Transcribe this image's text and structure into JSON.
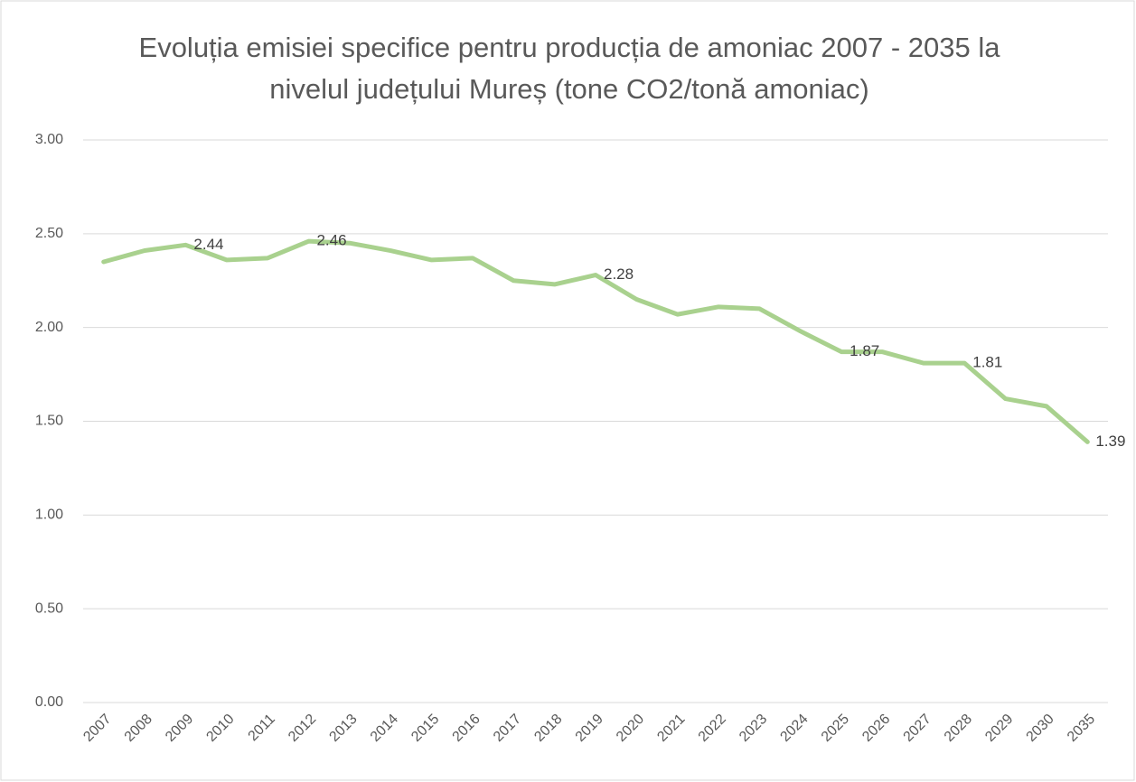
{
  "chart_data": {
    "type": "line",
    "title": "Evoluția emisiei specifice pentru producția de amoniac 2007 - 2035 la nivelul județului Mureș (tone CO2/tonă amoniac)",
    "categories": [
      "2007",
      "2008",
      "2009",
      "2010",
      "2011",
      "2012",
      "2013",
      "2014",
      "2015",
      "2016",
      "2017",
      "2018",
      "2019",
      "2020",
      "2021",
      "2022",
      "2023",
      "2024",
      "2025",
      "2026",
      "2027",
      "2028",
      "2029",
      "2030",
      "2035"
    ],
    "series": [
      {
        "color": "#a9d18e",
        "values": [
          2.35,
          2.41,
          2.44,
          2.36,
          2.37,
          2.46,
          2.45,
          2.41,
          2.36,
          2.37,
          2.25,
          2.23,
          2.28,
          2.15,
          2.07,
          2.11,
          2.1,
          1.98,
          1.87,
          1.87,
          1.81,
          1.81,
          1.62,
          1.58,
          1.39
        ],
        "value_labels": [
          null,
          null,
          "2.44",
          null,
          null,
          "2.46",
          null,
          null,
          null,
          null,
          null,
          null,
          "2.28",
          null,
          null,
          null,
          null,
          null,
          "1.87",
          null,
          null,
          "1.81",
          null,
          null,
          "1.39"
        ]
      }
    ],
    "ylim": [
      0,
      3
    ],
    "yticks": [
      {
        "value": 0,
        "label": "0.00"
      },
      {
        "value": 0.5,
        "label": "0.50"
      },
      {
        "value": 1,
        "label": "1.00"
      },
      {
        "value": 1.5,
        "label": "1.50"
      },
      {
        "value": 2,
        "label": "2.00"
      },
      {
        "value": 2.5,
        "label": "2.50"
      },
      {
        "value": 3,
        "label": "3.00"
      }
    ],
    "grid": true
  }
}
